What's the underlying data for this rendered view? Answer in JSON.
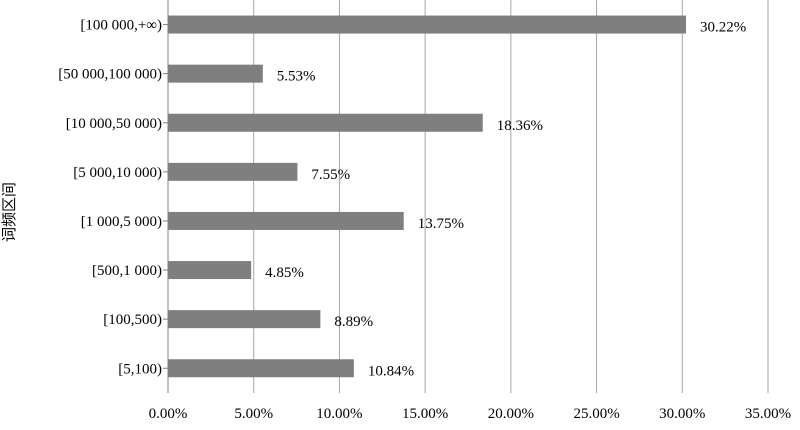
{
  "chart_data": {
    "type": "bar",
    "orientation": "horizontal",
    "title": "",
    "xlabel": "",
    "ylabel": "词频区间",
    "categories": [
      "[100 000,+∞)",
      "[50 000,100 000)",
      "[10 000,50 000)",
      "[5 000,10 000)",
      "[1 000,5 000)",
      "[500,1 000)",
      "[100,500)",
      "[5,100)"
    ],
    "values": [
      30.22,
      5.53,
      18.36,
      7.55,
      13.75,
      4.85,
      8.89,
      10.84
    ],
    "value_labels": [
      "30.22%",
      "5.53%",
      "18.36%",
      "7.55%",
      "13.75%",
      "4.85%",
      "8.89%",
      "10.84%"
    ],
    "xlim": [
      0,
      35
    ],
    "xticks": [
      0,
      5,
      10,
      15,
      20,
      25,
      30,
      35
    ],
    "xtick_labels": [
      "0.00%",
      "5.00%",
      "10.00%",
      "15.00%",
      "20.00%",
      "25.00%",
      "30.00%",
      "35.00%"
    ],
    "grid": true,
    "legend": "none",
    "colors": {
      "bar": "#7f7f7f",
      "grid": "#a6a6a6",
      "axis": "#808080"
    }
  }
}
